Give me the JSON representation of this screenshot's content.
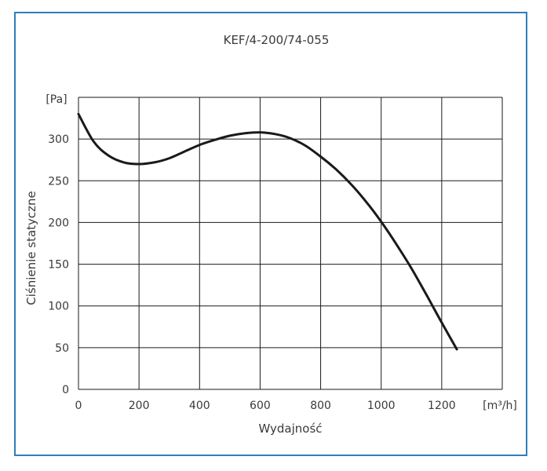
{
  "chart_data": {
    "type": "line",
    "title": "KEF/4-200/74-055",
    "xlabel": "Wydajność",
    "ylabel": "Ciśnienie statyczne",
    "x_unit": "[m³/h]",
    "y_unit": "[Pa]",
    "xlim": [
      0,
      1400
    ],
    "ylim": [
      0,
      350
    ],
    "x_ticks": [
      0,
      200,
      400,
      600,
      800,
      1000,
      1200
    ],
    "y_ticks": [
      0,
      50,
      100,
      150,
      200,
      250,
      300
    ],
    "grid": true,
    "colors": {
      "line": "#1a1a1a",
      "grid": "#1a1a1a",
      "frame": "#2f7fb8",
      "text": "#3a3a3a"
    },
    "series": [
      {
        "x": [
          0,
          50,
          100,
          150,
          200,
          250,
          300,
          350,
          400,
          450,
          500,
          550,
          600,
          650,
          700,
          750,
          800,
          850,
          900,
          950,
          1000,
          1050,
          1100,
          1150,
          1200,
          1250
        ],
        "y": [
          330,
          297,
          280,
          272,
          270,
          272,
          277,
          285,
          293,
          299,
          304,
          307,
          308,
          306,
          301,
          292,
          279,
          264,
          246,
          225,
          201,
          174,
          145,
          113,
          80,
          48
        ]
      }
    ]
  }
}
